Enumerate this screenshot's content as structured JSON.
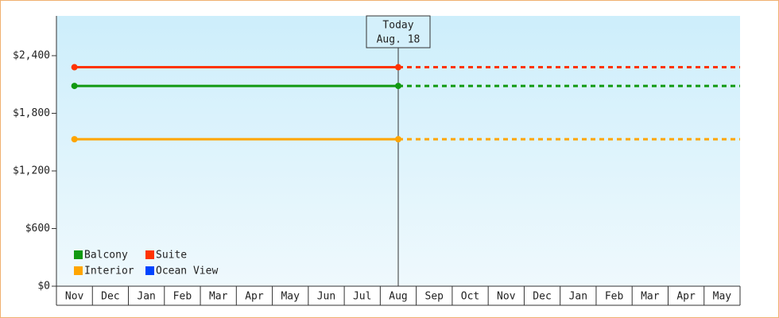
{
  "chart_data": {
    "type": "line",
    "categories": [
      "Nov",
      "Dec",
      "Jan",
      "Feb",
      "Mar",
      "Apr",
      "May",
      "Jun",
      "Jul",
      "Aug",
      "Sep",
      "Oct",
      "Nov",
      "Dec",
      "Jan",
      "Feb",
      "Mar",
      "Apr",
      "May"
    ],
    "series": [
      {
        "name": "Balcony",
        "color": "#119911",
        "values": [
          2085,
          2085,
          2085,
          2085,
          2085,
          2085,
          2085,
          2085,
          2085,
          2085,
          null,
          null,
          null,
          null,
          null,
          null,
          null,
          null,
          null
        ]
      },
      {
        "name": "Suite",
        "color": "#ff3300",
        "values": [
          2280,
          2280,
          2280,
          2280,
          2280,
          2280,
          2280,
          2280,
          2280,
          2280,
          null,
          null,
          null,
          null,
          null,
          null,
          null,
          null,
          null
        ]
      },
      {
        "name": "Interior",
        "color": "#ffa500",
        "values": [
          1530,
          1530,
          1530,
          1530,
          1530,
          1530,
          1530,
          1530,
          1530,
          1530,
          null,
          null,
          null,
          null,
          null,
          null,
          null,
          null,
          null
        ]
      },
      {
        "name": "Ocean View",
        "color": "#0044ff",
        "values": [
          null,
          null,
          null,
          null,
          null,
          null,
          null,
          null,
          null,
          null,
          null,
          null,
          null,
          null,
          null,
          null,
          null,
          null,
          null
        ]
      }
    ],
    "today": {
      "label": "Today",
      "date": "Aug. 18"
    },
    "ylim": [
      0,
      2814
    ],
    "yticks": [
      {
        "value": 0,
        "label": "$0"
      },
      {
        "value": 600,
        "label": "$600"
      },
      {
        "value": 1200,
        "label": "$1,200"
      },
      {
        "value": 1800,
        "label": "$1,800"
      },
      {
        "value": 2400,
        "label": "$2,400"
      }
    ],
    "legend": "lower-left"
  }
}
